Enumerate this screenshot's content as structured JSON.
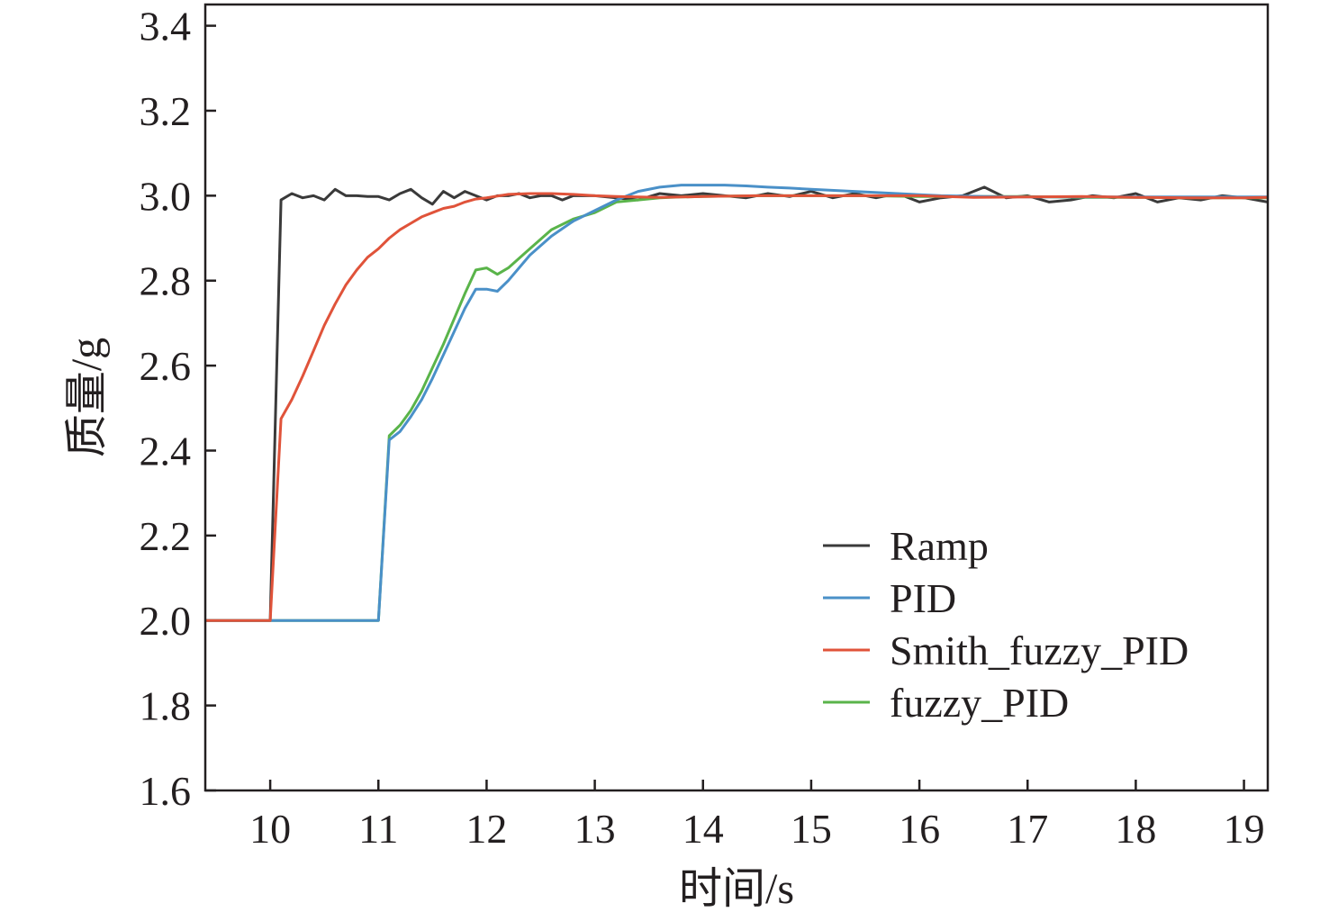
{
  "chart_data": {
    "type": "line",
    "title": "",
    "xlabel": "时间/s",
    "ylabel": "质量/g",
    "xlim": [
      9.4,
      19.22
    ],
    "ylim": [
      1.6,
      3.45
    ],
    "x_ticks": [
      10,
      11,
      12,
      13,
      14,
      15,
      16,
      17,
      18,
      19
    ],
    "y_ticks": [
      1.6,
      1.8,
      2.0,
      2.2,
      2.4,
      2.6,
      2.8,
      3.0,
      3.2,
      3.4
    ],
    "x_tick_labels": [
      "10",
      "11",
      "12",
      "13",
      "14",
      "15",
      "16",
      "17",
      "18",
      "19"
    ],
    "y_tick_labels": [
      "1.6",
      "1.8",
      "2.0",
      "2.2",
      "2.4",
      "2.6",
      "2.8",
      "3.0",
      "3.2",
      "3.4"
    ],
    "grid": false,
    "legend_position": "lower-right",
    "series": [
      {
        "name": "Ramp",
        "color": "#3a3a3a",
        "x": [
          9.4,
          10.0,
          10.1,
          10.2,
          10.3,
          10.4,
          10.5,
          10.6,
          10.7,
          10.8,
          10.9,
          11.0,
          11.1,
          11.2,
          11.3,
          11.4,
          11.5,
          11.6,
          11.7,
          11.8,
          11.9,
          12.0,
          12.1,
          12.2,
          12.3,
          12.4,
          12.5,
          12.6,
          12.7,
          12.8,
          12.9,
          13.0,
          13.2,
          13.4,
          13.6,
          13.8,
          14.0,
          14.2,
          14.4,
          14.6,
          14.8,
          15.0,
          15.2,
          15.4,
          15.6,
          15.8,
          16.0,
          16.2,
          16.4,
          16.6,
          16.8,
          17.0,
          17.2,
          17.4,
          17.6,
          17.8,
          18.0,
          18.2,
          18.4,
          18.6,
          18.8,
          19.0,
          19.22
        ],
        "y": [
          2.0,
          2.0,
          2.99,
          3.005,
          2.995,
          3.0,
          2.99,
          3.015,
          3.0,
          3.0,
          2.998,
          2.998,
          2.99,
          3.005,
          3.015,
          2.995,
          2.98,
          3.01,
          2.995,
          3.01,
          3.0,
          2.99,
          3.0,
          3.0,
          3.005,
          2.995,
          3.0,
          3.0,
          2.99,
          3.0,
          3.0,
          3.0,
          2.995,
          2.99,
          3.005,
          3.0,
          3.005,
          3.0,
          2.995,
          3.005,
          2.998,
          3.01,
          2.995,
          3.005,
          2.995,
          3.005,
          2.985,
          2.995,
          3.0,
          3.02,
          2.995,
          3.0,
          2.985,
          2.99,
          3.0,
          2.995,
          3.005,
          2.985,
          2.995,
          2.99,
          3.0,
          2.995,
          2.985
        ]
      },
      {
        "name": "PID",
        "color": "#4a90c8",
        "x": [
          9.4,
          11.0,
          11.1,
          11.2,
          11.3,
          11.4,
          11.5,
          11.6,
          11.7,
          11.8,
          11.9,
          12.0,
          12.1,
          12.2,
          12.4,
          12.6,
          12.8,
          13.0,
          13.2,
          13.4,
          13.6,
          13.8,
          14.0,
          14.2,
          14.4,
          14.6,
          14.8,
          15.0,
          15.4,
          15.8,
          16.2,
          16.6,
          17.0,
          17.5,
          18.0,
          18.5,
          19.0,
          19.22
        ],
        "y": [
          2.0,
          2.0,
          2.425,
          2.445,
          2.48,
          2.52,
          2.57,
          2.625,
          2.68,
          2.735,
          2.78,
          2.78,
          2.775,
          2.8,
          2.86,
          2.905,
          2.94,
          2.965,
          2.99,
          3.01,
          3.02,
          3.025,
          3.025,
          3.025,
          3.023,
          3.02,
          3.018,
          3.015,
          3.01,
          3.005,
          3.0,
          2.998,
          2.997,
          2.997,
          2.997,
          2.997,
          2.997,
          2.997
        ]
      },
      {
        "name": "Smith_fuzzy_PID",
        "color": "#e0533a",
        "x": [
          9.4,
          10.0,
          10.1,
          10.2,
          10.3,
          10.4,
          10.5,
          10.6,
          10.7,
          10.8,
          10.9,
          11.0,
          11.1,
          11.2,
          11.3,
          11.4,
          11.5,
          11.6,
          11.7,
          11.8,
          11.9,
          12.0,
          12.2,
          12.4,
          12.6,
          12.8,
          13.0,
          13.2,
          13.4,
          13.6,
          13.8,
          14.0,
          14.5,
          15.0,
          15.5,
          16.0,
          16.5,
          17.0,
          17.5,
          18.0,
          18.5,
          19.0,
          19.22
        ],
        "y": [
          2.0,
          2.0,
          2.475,
          2.52,
          2.575,
          2.635,
          2.695,
          2.745,
          2.79,
          2.825,
          2.855,
          2.875,
          2.9,
          2.92,
          2.935,
          2.95,
          2.96,
          2.97,
          2.975,
          2.985,
          2.992,
          2.995,
          3.003,
          3.005,
          3.005,
          3.003,
          3.0,
          2.998,
          2.997,
          2.996,
          2.997,
          2.998,
          3.0,
          3.0,
          3.0,
          3.0,
          2.996,
          2.997,
          2.998,
          2.996,
          2.995,
          2.995,
          2.996
        ]
      },
      {
        "name": "fuzzy_PID",
        "color": "#5ab44a",
        "x": [
          9.4,
          11.0,
          11.1,
          11.2,
          11.3,
          11.4,
          11.5,
          11.6,
          11.7,
          11.8,
          11.9,
          12.0,
          12.1,
          12.2,
          12.4,
          12.6,
          12.8,
          13.0,
          13.2,
          13.4,
          13.6,
          13.8,
          14.0,
          14.5,
          15.0,
          15.5,
          16.0,
          16.5,
          17.0,
          17.5,
          18.0,
          18.5,
          19.0,
          19.22
        ],
        "y": [
          2.0,
          2.0,
          2.435,
          2.46,
          2.495,
          2.54,
          2.595,
          2.65,
          2.71,
          2.77,
          2.825,
          2.83,
          2.815,
          2.83,
          2.875,
          2.92,
          2.945,
          2.96,
          2.985,
          2.99,
          2.995,
          2.997,
          2.998,
          3.0,
          3.0,
          3.0,
          2.998,
          2.998,
          2.998,
          2.996,
          2.996,
          2.995,
          2.995,
          2.995
        ]
      }
    ]
  }
}
